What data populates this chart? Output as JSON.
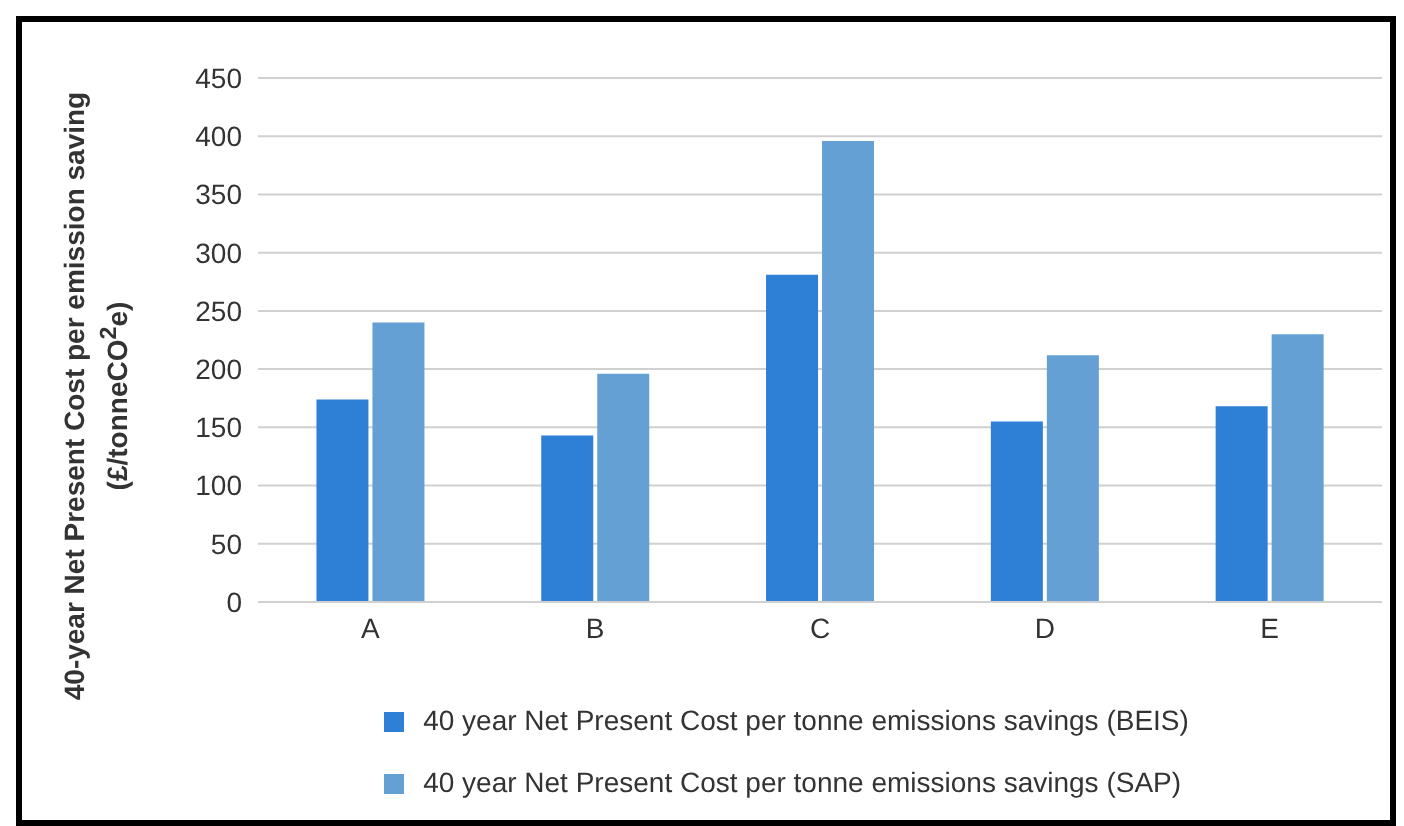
{
  "chart_data": {
    "type": "bar",
    "ylabel": "40-year  Net Present Cost per emission saving (£/tonneCO$^{2}$e)",
    "categories": [
      "A",
      "B",
      "C",
      "D",
      "E"
    ],
    "series": [
      {
        "name": "40 year Net Present Cost per tonne emissions savings (BEIS)",
        "color": "#2e7fd6",
        "values": [
          174,
          143,
          281,
          155,
          168
        ]
      },
      {
        "name": "40 year Net Present Cost per tonne emissions savings (SAP)",
        "color": "#64a0d4",
        "values": [
          240,
          196,
          396,
          212,
          230
        ]
      }
    ],
    "ylim": [
      0,
      450
    ],
    "yticks": [
      0,
      50,
      100,
      150,
      200,
      250,
      300,
      350,
      400,
      450
    ],
    "grid": "y",
    "legend": "bottom"
  }
}
